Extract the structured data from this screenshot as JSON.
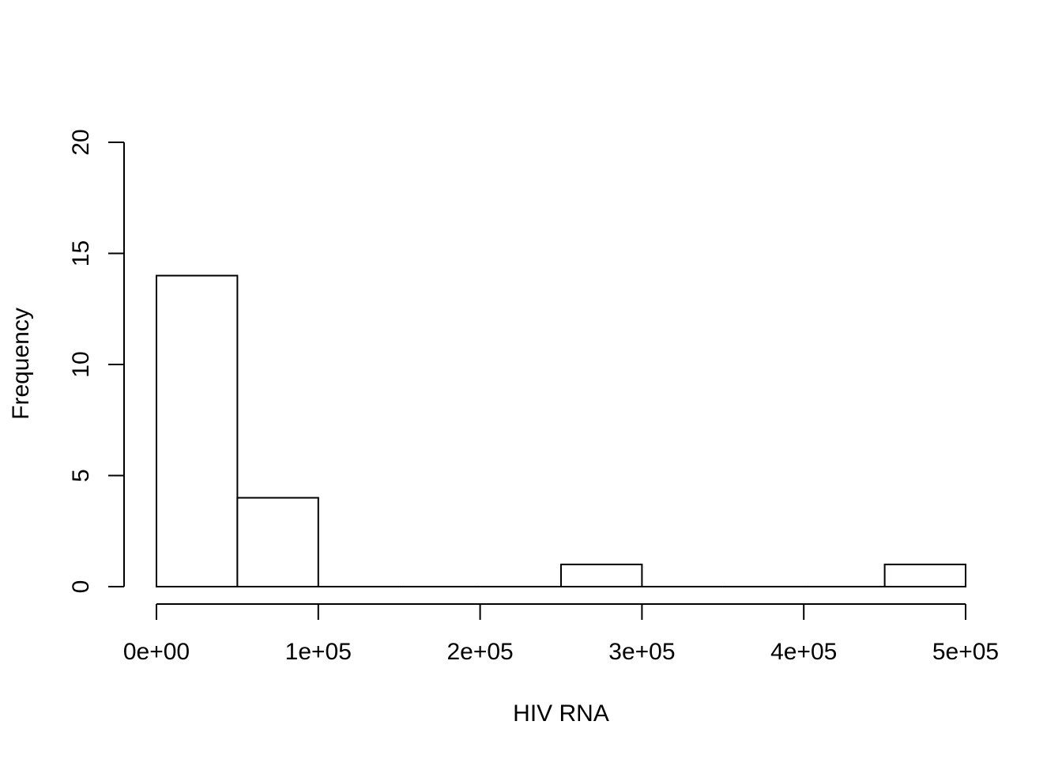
{
  "chart_data": {
    "type": "bar",
    "title": "",
    "xlabel": "HIV RNA",
    "ylabel": "Frequency",
    "bins": [
      {
        "start": 0,
        "end": 50000,
        "count": 14
      },
      {
        "start": 50000,
        "end": 100000,
        "count": 4
      },
      {
        "start": 100000,
        "end": 150000,
        "count": 0
      },
      {
        "start": 150000,
        "end": 200000,
        "count": 0
      },
      {
        "start": 200000,
        "end": 250000,
        "count": 0
      },
      {
        "start": 250000,
        "end": 300000,
        "count": 1
      },
      {
        "start": 300000,
        "end": 350000,
        "count": 0
      },
      {
        "start": 350000,
        "end": 400000,
        "count": 0
      },
      {
        "start": 400000,
        "end": 450000,
        "count": 0
      },
      {
        "start": 450000,
        "end": 500000,
        "count": 1
      }
    ],
    "xlim": [
      0,
      500000
    ],
    "ylim": [
      0,
      20
    ],
    "x_ticks": [
      {
        "value": 0,
        "label": "0e+00"
      },
      {
        "value": 100000,
        "label": "1e+05"
      },
      {
        "value": 200000,
        "label": "2e+05"
      },
      {
        "value": 300000,
        "label": "3e+05"
      },
      {
        "value": 400000,
        "label": "4e+05"
      },
      {
        "value": 500000,
        "label": "5e+05"
      }
    ],
    "y_ticks": [
      {
        "value": 0,
        "label": "0"
      },
      {
        "value": 5,
        "label": "5"
      },
      {
        "value": 10,
        "label": "10"
      },
      {
        "value": 15,
        "label": "15"
      },
      {
        "value": 20,
        "label": "20"
      }
    ],
    "fill_color": "#ffffff",
    "stroke_color": "#000000",
    "grid": false,
    "legend": "none"
  }
}
